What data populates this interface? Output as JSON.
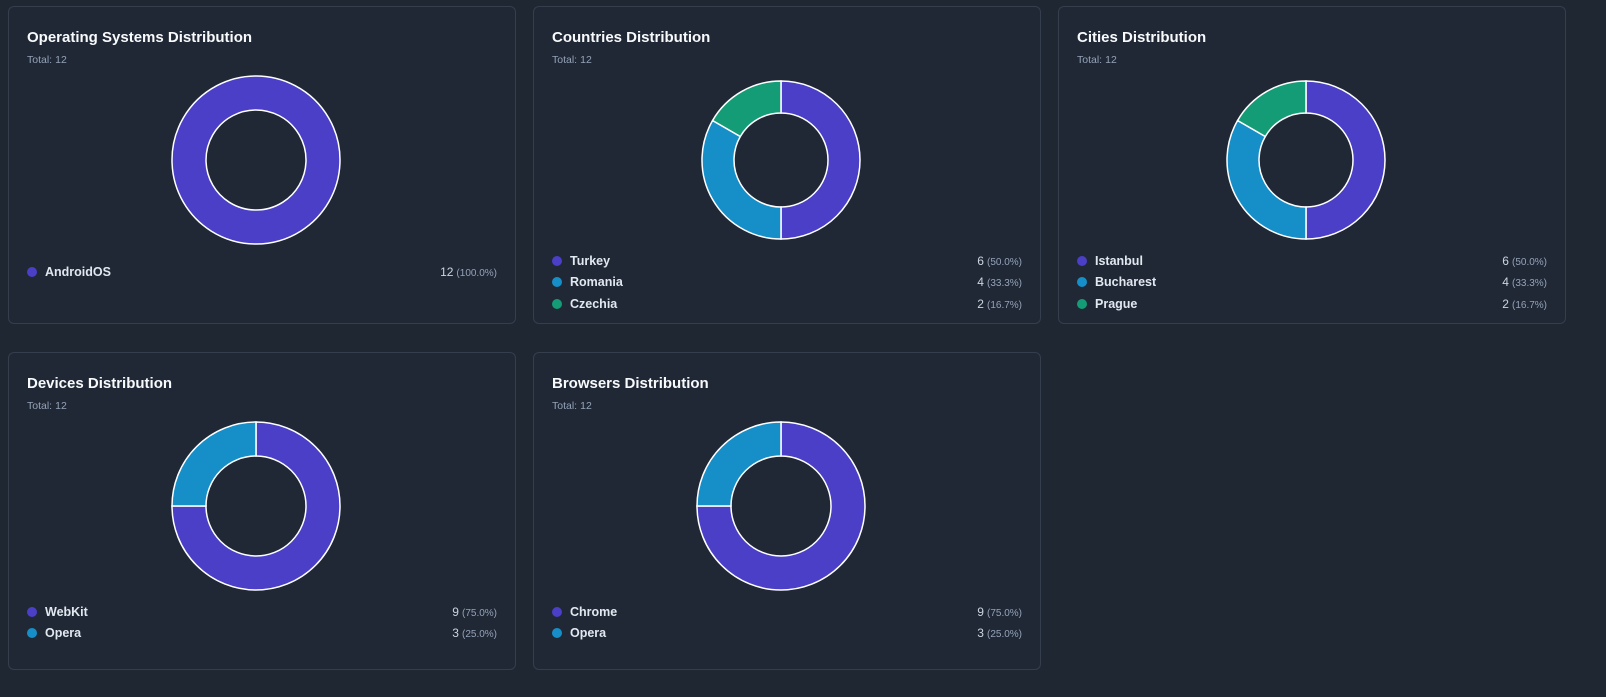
{
  "colors": {
    "background": "#1f2733",
    "card": "#202836",
    "border": "#343e4d",
    "indigo": "#4a3fc6",
    "sky": "#168fc8",
    "emerald": "#149c76",
    "slice_stroke": "#ffffff"
  },
  "total_prefix": "Total:",
  "chart_data": [
    {
      "type": "pie",
      "title": "Operating Systems Distribution",
      "total": "12",
      "categories": [
        "AndroidOS"
      ],
      "values": [
        12
      ],
      "percents": [
        "(100.0%)"
      ],
      "colors": [
        "#4a3fc6"
      ]
    },
    {
      "type": "pie",
      "title": "Countries Distribution",
      "total": "12",
      "categories": [
        "Turkey",
        "Romania",
        "Czechia"
      ],
      "values": [
        6,
        4,
        2
      ],
      "percents": [
        "(50.0%)",
        "(33.3%)",
        "(16.7%)"
      ],
      "colors": [
        "#4a3fc6",
        "#168fc8",
        "#149c76"
      ]
    },
    {
      "type": "pie",
      "title": "Cities Distribution",
      "total": "12",
      "categories": [
        "Istanbul",
        "Bucharest",
        "Prague"
      ],
      "values": [
        6,
        4,
        2
      ],
      "percents": [
        "(50.0%)",
        "(33.3%)",
        "(16.7%)"
      ],
      "colors": [
        "#4a3fc6",
        "#168fc8",
        "#149c76"
      ]
    },
    {
      "type": "pie",
      "title": "Devices Distribution",
      "total": "12",
      "categories": [
        "WebKit",
        "Opera"
      ],
      "values": [
        9,
        3
      ],
      "percents": [
        "(75.0%)",
        "(25.0%)"
      ],
      "colors": [
        "#4a3fc6",
        "#168fc8"
      ]
    },
    {
      "type": "pie",
      "title": "Browsers Distribution",
      "total": "12",
      "categories": [
        "Chrome",
        "Opera"
      ],
      "values": [
        9,
        3
      ],
      "percents": [
        "(75.0%)",
        "(25.0%)"
      ],
      "colors": [
        "#4a3fc6",
        "#168fc8"
      ]
    }
  ]
}
